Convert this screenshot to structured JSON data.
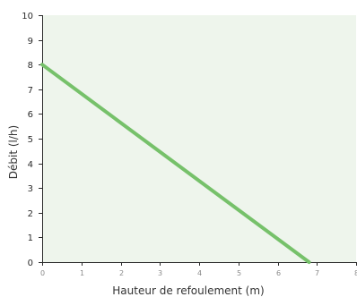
{
  "chart_data": {
    "type": "line",
    "xlabel": "Hauteur de refoulement (m)",
    "ylabel": "Débit (l/h)",
    "xlim": [
      0,
      8
    ],
    "ylim": [
      0,
      10
    ],
    "x_ticks": [
      "0",
      "1",
      "2",
      "3",
      "4",
      "5",
      "6",
      "7",
      "8"
    ],
    "y_ticks": [
      "0",
      "1",
      "2",
      "3",
      "4",
      "5",
      "6",
      "7",
      "8",
      "9",
      "10"
    ],
    "grid": false,
    "legend": "none",
    "series": [
      {
        "x": [
          0,
          6.8
        ],
        "y": [
          8,
          0
        ]
      }
    ],
    "colors": {
      "plot_background": "#eef5ec",
      "line": "#76c16a",
      "axis": "#2b2b2b",
      "x_tick_text": "#8a8a8a",
      "y_tick_text": "#2b2b2b"
    }
  }
}
